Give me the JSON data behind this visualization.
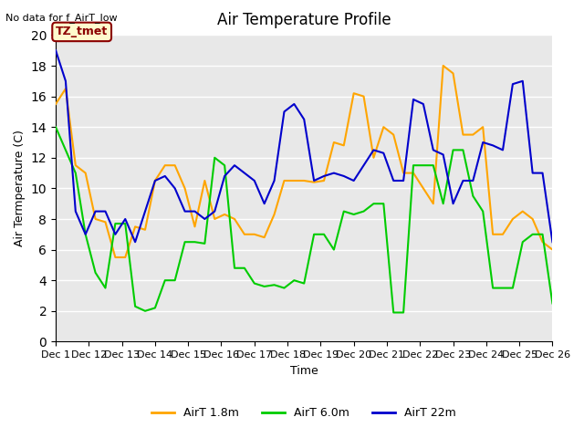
{
  "title": "Air Temperature Profile",
  "subtitle": "No data for f_AirT_low",
  "xlabel": "Time",
  "ylabel": "Air Termperature (C)",
  "annotation": "TZ_tmet",
  "ylim": [
    0,
    20
  ],
  "xlim": [
    0,
    25
  ],
  "xtick_labels": [
    "Dec 1",
    "Dec 12",
    "Dec 13",
    "Dec 14",
    "Dec 15",
    "Dec 16",
    "Dec 17",
    "Dec 18",
    "Dec 19",
    "Dec 20",
    "Dec 21",
    "Dec 22",
    "Dec 23",
    "Dec 24",
    "Dec 25",
    "Dec 26"
  ],
  "xtick_positions": [
    0,
    1,
    2,
    3,
    4,
    5,
    6,
    7,
    8,
    9,
    10,
    11,
    12,
    13,
    14,
    15
  ],
  "background_color": "#e8e8e8",
  "grid_color": "#ffffff",
  "line_colors": {
    "airt18": "#FFA500",
    "airt60": "#00CC00",
    "airt22": "#0000CC"
  },
  "airt18": [
    15.5,
    16.5,
    11.5,
    11.0,
    8.0,
    7.8,
    5.5,
    5.5,
    7.5,
    7.3,
    10.5,
    11.5,
    11.5,
    10.0,
    7.5,
    10.5,
    8.0,
    8.3,
    8.0,
    7.0,
    7.0,
    6.8,
    8.3,
    10.5,
    10.5,
    10.5,
    10.4,
    10.5,
    13.0,
    12.8,
    16.2,
    16.0,
    12.0,
    14.0,
    13.5,
    11.0,
    11.0,
    10.0,
    9.0,
    18.0,
    17.5,
    13.5,
    13.5,
    14.0,
    7.0,
    7.0,
    8.0,
    8.5,
    8.0,
    6.5,
    6.0
  ],
  "airt60": [
    14.0,
    12.5,
    11.0,
    7.0,
    4.5,
    3.5,
    7.7,
    7.7,
    2.3,
    2.0,
    2.2,
    4.0,
    4.0,
    6.5,
    6.5,
    6.4,
    12.0,
    11.5,
    4.8,
    4.8,
    3.8,
    3.6,
    3.7,
    3.5,
    4.0,
    3.8,
    7.0,
    7.0,
    6.0,
    8.5,
    8.3,
    8.5,
    9.0,
    9.0,
    1.9,
    1.9,
    11.5,
    11.5,
    11.5,
    9.0,
    12.5,
    12.5,
    9.5,
    8.5,
    3.5,
    3.5,
    3.5,
    6.5,
    7.0,
    7.0,
    2.5
  ],
  "airt22": [
    19.0,
    17.0,
    8.5,
    7.0,
    8.5,
    8.5,
    7.0,
    8.0,
    6.5,
    8.5,
    10.5,
    10.8,
    10.0,
    8.5,
    8.5,
    8.0,
    8.5,
    10.8,
    11.5,
    11.0,
    10.5,
    9.0,
    10.5,
    15.0,
    15.5,
    14.5,
    10.5,
    10.8,
    11.0,
    10.8,
    10.5,
    11.5,
    12.5,
    12.3,
    10.5,
    10.5,
    15.8,
    15.5,
    12.5,
    12.2,
    9.0,
    10.5,
    10.5,
    13.0,
    12.8,
    12.5,
    16.8,
    17.0,
    11.0,
    11.0,
    6.5
  ]
}
